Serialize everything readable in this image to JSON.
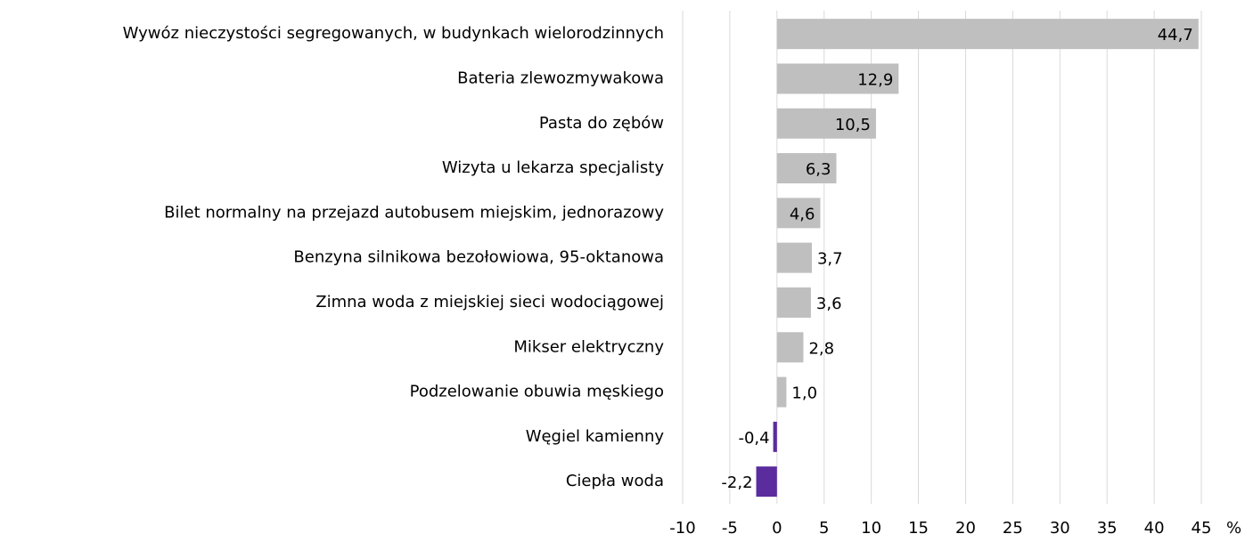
{
  "chart_data": {
    "type": "barh",
    "categories": [
      "Wywóz nieczystości  segregowanych, w budynkach wielorodzinnych",
      "Bateria zlewozmywakowa",
      "Pasta do zębów",
      "Wizyta u lekarza specjalisty",
      "Bilet normalny na przejazd autobusem miejskim, jednorazowy",
      "Benzyna silnikowa bezołowiowa, 95-oktanowa",
      "Zimna woda z miejskiej sieci wodociągowej",
      "Mikser elektryczny",
      "Podzelowanie obuwia męskiego",
      "Węgiel kamienny",
      "Ciepła woda"
    ],
    "values": [
      44.7,
      12.9,
      10.5,
      6.3,
      4.6,
      3.7,
      3.6,
      2.8,
      1.0,
      -0.4,
      -2.2
    ],
    "value_labels": [
      "44,7",
      "12,9",
      "10,5",
      "6,3",
      "4,6",
      "3,7",
      "3,6",
      "2,8",
      "1,0",
      "-0,4",
      "-2,2"
    ],
    "colors": [
      "#bfbfbf",
      "#bfbfbf",
      "#bfbfbf",
      "#bfbfbf",
      "#bfbfbf",
      "#bfbfbf",
      "#bfbfbf",
      "#bfbfbf",
      "#bfbfbf",
      "#5b2c9e",
      "#5b2c9e"
    ],
    "xlim": [
      -10,
      45
    ],
    "xticks": [
      -10,
      -5,
      0,
      5,
      10,
      15,
      20,
      25,
      30,
      35,
      40,
      45
    ],
    "x_label": "%",
    "grid": true
  }
}
